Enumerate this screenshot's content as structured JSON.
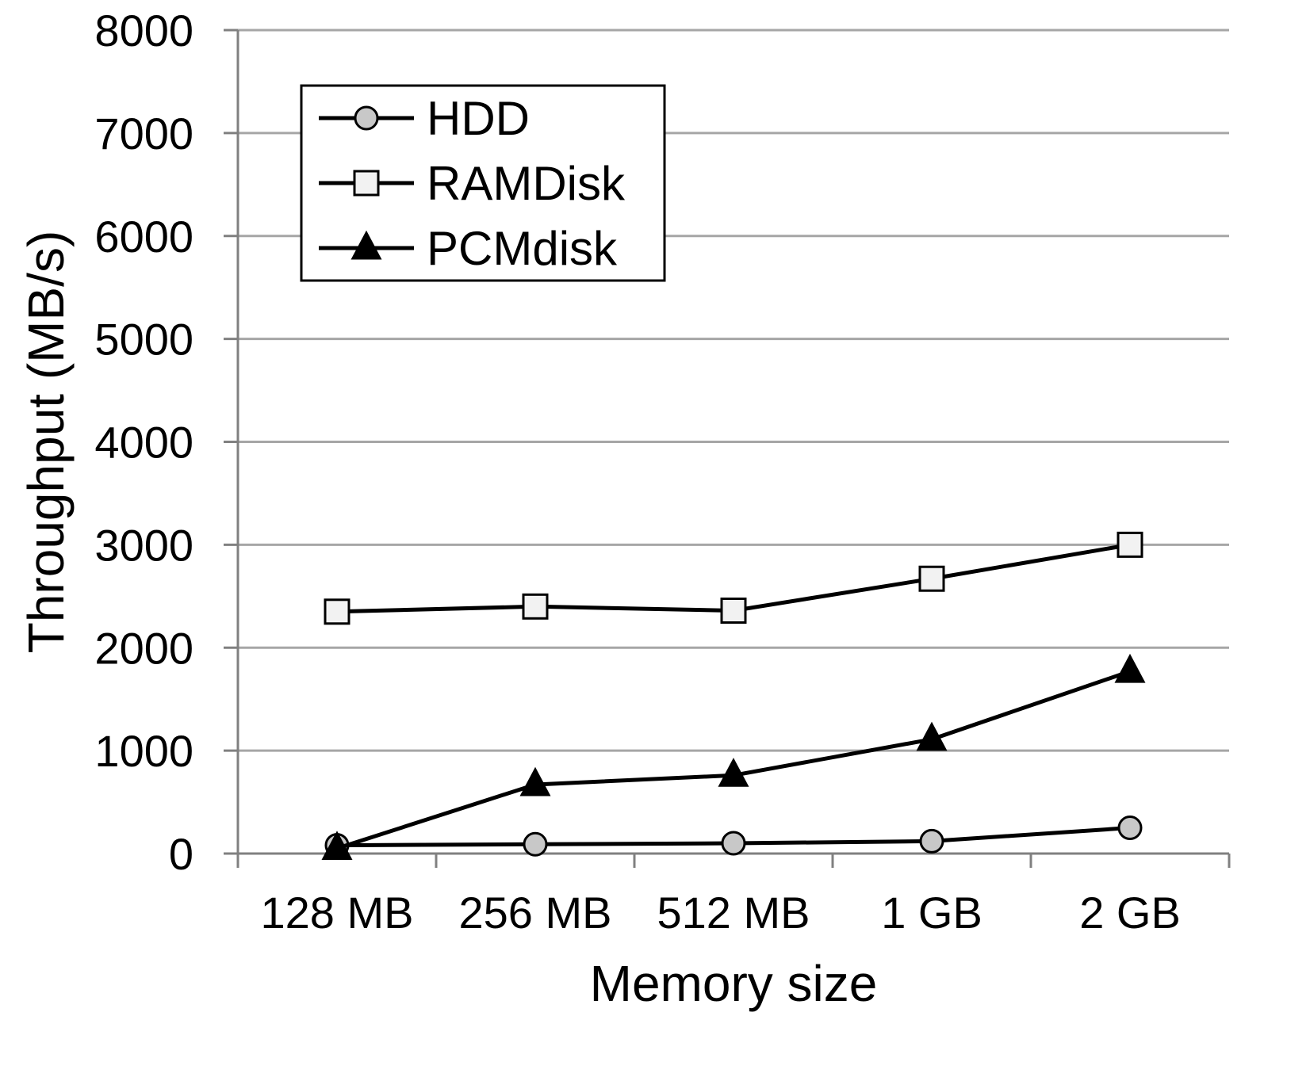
{
  "chart_data": {
    "type": "line",
    "title": "",
    "xlabel": "Memory size",
    "ylabel": "Throughput (MB/s)",
    "categories": [
      "128 MB",
      "256 MB",
      "512 MB",
      "1 GB",
      "2 GB"
    ],
    "ylim": [
      0,
      8000
    ],
    "yticks": [
      0,
      1000,
      2000,
      3000,
      4000,
      5000,
      6000,
      7000,
      8000
    ],
    "grid": true,
    "legend_position": "top-left",
    "series": [
      {
        "name": "HDD",
        "values": [
          80,
          90,
          100,
          120,
          250
        ],
        "marker": "circle",
        "marker_fill": "#c8c8c8"
      },
      {
        "name": "RAMDisk",
        "values": [
          2350,
          2400,
          2360,
          2670,
          3000
        ],
        "marker": "square",
        "marker_fill": "#f2f2f2"
      },
      {
        "name": "PCMdisk",
        "values": [
          50,
          670,
          760,
          1110,
          1770
        ],
        "marker": "triangle",
        "marker_fill": "#000000"
      }
    ],
    "colors": {
      "line": "#000000",
      "grid": "#a6a6a6",
      "axis": "#808080"
    }
  }
}
